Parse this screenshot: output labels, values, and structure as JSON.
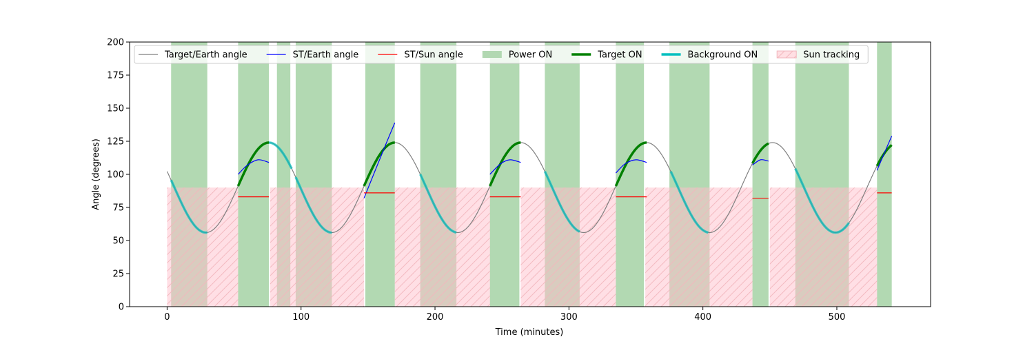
{
  "chart_data": {
    "type": "line",
    "title": "",
    "xlabel": "Time (minutes)",
    "ylabel": "Angle (degrees)",
    "xlim": [
      -28,
      570
    ],
    "ylim": [
      0,
      200
    ],
    "x_ticks": [
      0,
      100,
      200,
      300,
      400,
      500
    ],
    "y_ticks": [
      0,
      25,
      50,
      75,
      100,
      125,
      150,
      175,
      200
    ],
    "grid": false,
    "legend_position": "top",
    "legend": [
      {
        "label": "Target/Earth angle",
        "kind": "line",
        "color": "#808080"
      },
      {
        "label": "ST/Earth angle",
        "kind": "line",
        "color": "#0000ff"
      },
      {
        "label": "ST/Sun angle",
        "kind": "line",
        "color": "#ff0000"
      },
      {
        "label": "Power ON",
        "kind": "patch",
        "color": "#b2d8b2"
      },
      {
        "label": "Target ON",
        "kind": "thickline",
        "color": "#008000"
      },
      {
        "label": "Background ON",
        "kind": "thickline",
        "color": "#00bfbf"
      },
      {
        "label": "Sun tracking",
        "kind": "hatch",
        "color": "#ffdfe3"
      }
    ],
    "target_earth_angle": {
      "period_minutes": 94,
      "peak_time": 76,
      "max_deg": 124,
      "min_deg": 56,
      "t_range": [
        0,
        540
      ]
    },
    "power_on_intervals": [
      [
        3,
        30
      ],
      [
        53,
        76
      ],
      [
        82,
        92
      ],
      [
        96,
        123
      ],
      [
        148,
        170
      ],
      [
        189,
        216
      ],
      [
        241,
        263
      ],
      [
        282,
        308
      ],
      [
        335,
        356
      ],
      [
        375,
        405
      ],
      [
        437,
        449
      ],
      [
        469,
        509
      ],
      [
        530,
        541
      ]
    ],
    "sun_tracking_intervals": [
      [
        0,
        53
      ],
      [
        77,
        147
      ],
      [
        170,
        241
      ],
      [
        264,
        335
      ],
      [
        357,
        437
      ],
      [
        450,
        530
      ]
    ],
    "sun_tracking_level": 90,
    "target_on_intervals": [
      [
        53,
        76
      ],
      [
        147,
        170
      ],
      [
        241,
        264
      ],
      [
        335,
        358
      ],
      [
        437,
        449
      ],
      [
        530,
        541
      ]
    ],
    "background_on_intervals": [
      [
        3,
        30
      ],
      [
        76,
        93
      ],
      [
        96,
        123
      ],
      [
        189,
        216
      ],
      [
        282,
        308
      ],
      [
        376,
        404
      ],
      [
        469,
        509
      ]
    ],
    "st_earth_segments": [
      {
        "t": [
          53,
          60,
          68,
          76
        ],
        "y": [
          100,
          107,
          111,
          109
        ]
      },
      {
        "t": [
          147,
          155,
          163,
          170
        ],
        "y": [
          82,
          102,
          122,
          139
        ]
      },
      {
        "t": [
          241,
          249,
          256,
          264
        ],
        "y": [
          100,
          108,
          111,
          109
        ]
      },
      {
        "t": [
          335,
          342,
          350,
          358
        ],
        "y": [
          101,
          108,
          111,
          109
        ]
      },
      {
        "t": [
          437,
          443,
          449
        ],
        "y": [
          107,
          111,
          110
        ]
      },
      {
        "t": [
          530,
          535,
          541
        ],
        "y": [
          103,
          115,
          129
        ]
      }
    ],
    "st_sun_segments": [
      {
        "t": [
          53,
          76
        ],
        "y": 83
      },
      {
        "t": [
          147,
          170
        ],
        "y": 86
      },
      {
        "t": [
          241,
          264
        ],
        "y": 83
      },
      {
        "t": [
          335,
          358
        ],
        "y": 83
      },
      {
        "t": [
          437,
          449
        ],
        "y": 82
      },
      {
        "t": [
          530,
          541
        ],
        "y": 86
      }
    ]
  }
}
